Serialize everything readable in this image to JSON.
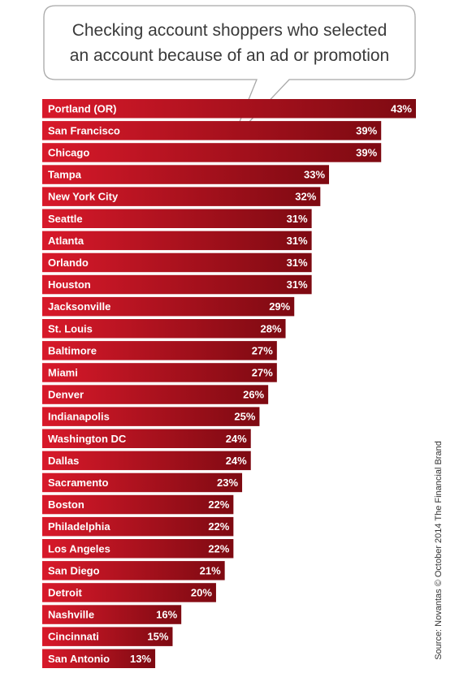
{
  "chart_data": {
    "type": "bar",
    "orientation": "horizontal",
    "title": "Checking account shoppers who selected an account because of an ad or promotion",
    "title_lines": [
      "Checking account shoppers who selected",
      "an account because of an ad or promotion"
    ],
    "categories": [
      "Portland (OR)",
      "San Francisco",
      "Chicago",
      "Tampa",
      "New York City",
      "Seattle",
      "Atlanta",
      "Orlando",
      "Houston",
      "Jacksonville",
      "St. Louis",
      "Baltimore",
      "Miami",
      "Denver",
      "Indianapolis",
      "Washington DC",
      "Dallas",
      "Sacramento",
      "Boston",
      "Philadelphia",
      "Los Angeles",
      "San Diego",
      "Detroit",
      "Nashville",
      "Cincinnati",
      "San Antonio"
    ],
    "values": [
      43,
      39,
      39,
      33,
      32,
      31,
      31,
      31,
      31,
      29,
      28,
      27,
      27,
      26,
      25,
      24,
      24,
      23,
      22,
      22,
      22,
      21,
      20,
      16,
      15,
      13
    ],
    "value_format": "{v}%",
    "xlabel": "",
    "ylabel": "",
    "grid": false,
    "legend": "none",
    "colors": {
      "bar_light": "#d8192a",
      "bar_dark": "#7e0a12",
      "label_text": "#ffffff",
      "title_text": "#3a3a3a"
    }
  },
  "source": "Source: Novantas © October 2014 The Financial Brand"
}
